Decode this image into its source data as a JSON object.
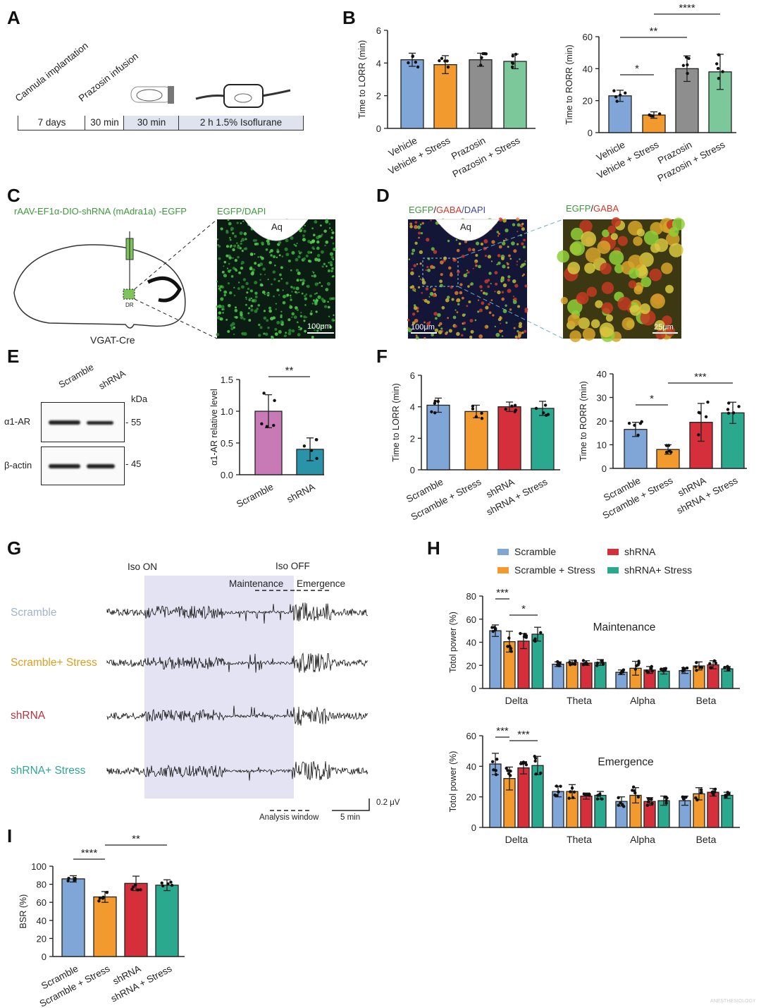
{
  "panel_labels": [
    "A",
    "B",
    "C",
    "D",
    "E",
    "F",
    "G",
    "H",
    "I"
  ],
  "panel_A": {
    "event_labels": [
      "Cannula implantation",
      "Prazosin infusion"
    ],
    "timeline": [
      "7 days",
      "30 min",
      "30 min",
      "2 h 1.5% Isoflurane"
    ]
  },
  "panel_C": {
    "vector": "rAAV-EF1α-DIO-shRNA (mAdra1a) -EGFP",
    "stain": "EGFP/DAPI",
    "region": "Aq",
    "scale": "100μm",
    "injection_site": "DR",
    "mouse_line": "VGAT-Cre"
  },
  "panel_D": {
    "stain_left": [
      "EGFP",
      "/",
      "GABA",
      "/DAPI"
    ],
    "stain_right": [
      "EGFP",
      "/",
      "GABA"
    ],
    "region": "Aq",
    "scale_left": "100μm",
    "scale_right": "25μm"
  },
  "panel_E_blot": {
    "lanes": [
      "Scramble",
      "shRNA"
    ],
    "unit": "kDa",
    "rows": [
      {
        "protein": "α1-AR",
        "kda": "55"
      },
      {
        "protein": "β-actin",
        "kda": "45"
      }
    ]
  },
  "panel_G": {
    "markers": [
      "Iso ON",
      "Iso OFF"
    ],
    "windows": [
      "Maintenance",
      "Emergence"
    ],
    "traces": [
      "Scramble",
      "Scramble+ Stress",
      "shRNA",
      "shRNA+ Stress"
    ],
    "trace_colors": [
      "#9fb4cc",
      "#d9a020",
      "#b5333a",
      "#2fa596"
    ],
    "analysis_window": "Analysis window",
    "time_scale": "5 min",
    "amp_scale": "0.2 μV"
  },
  "watermark": "ANESTHESIOLOGY",
  "chart_data": [
    {
      "id": "B_lorr",
      "type": "bar",
      "title": "",
      "xlabel": "",
      "ylabel": "Time to LORR (min)",
      "categories": [
        "Vehicle",
        "Vehicle + Stress",
        "Prazosin",
        "Prazosin + Stress"
      ],
      "values": [
        4.2,
        3.9,
        4.2,
        4.1
      ],
      "errors": [
        0.4,
        0.55,
        0.4,
        0.45
      ],
      "colors": [
        "#7fa6d6",
        "#f39a2e",
        "#8e8e8e",
        "#7cc89a"
      ],
      "ylim": [
        0,
        6
      ],
      "yticks": [
        "0",
        "2",
        "4",
        "6"
      ],
      "significance": []
    },
    {
      "id": "B_rorr",
      "type": "bar",
      "title": "",
      "xlabel": "",
      "ylabel": "Time to RORR (min)",
      "categories": [
        "Vehicle",
        "Vehicle + Stress",
        "Prazosin",
        "Prazosin + Stress"
      ],
      "values": [
        23,
        11,
        40,
        38
      ],
      "errors": [
        3.5,
        2,
        8,
        11
      ],
      "colors": [
        "#7fa6d6",
        "#f39a2e",
        "#8e8e8e",
        "#7cc89a"
      ],
      "ylim": [
        0,
        60
      ],
      "yticks": [
        "0",
        "20",
        "40",
        "60"
      ],
      "significance": [
        {
          "pair": [
            0,
            1
          ],
          "label": "*"
        },
        {
          "pair": [
            0,
            2
          ],
          "label": "**"
        },
        {
          "pair": [
            1,
            3
          ],
          "label": "****"
        }
      ]
    },
    {
      "id": "E_wb",
      "type": "bar",
      "title": "",
      "xlabel": "",
      "ylabel": "α1-AR relative level",
      "categories": [
        "Scramble",
        "shRNA"
      ],
      "values": [
        1.0,
        0.4
      ],
      "errors": [
        0.26,
        0.18
      ],
      "colors": [
        "#c87ab6",
        "#2a93a8"
      ],
      "ylim": [
        0,
        1.5
      ],
      "yticks": [
        "0.0",
        "0.5",
        "1.0",
        "1.5"
      ],
      "significance": [
        {
          "pair": [
            0,
            1
          ],
          "label": "**"
        }
      ]
    },
    {
      "id": "F_lorr",
      "type": "bar",
      "title": "",
      "xlabel": "",
      "ylabel": "Time to LORR (min)",
      "categories": [
        "Scramble",
        "Scramble + Stress",
        "shRNA",
        "shRNA + Stress"
      ],
      "values": [
        4.1,
        3.7,
        4.0,
        3.9
      ],
      "errors": [
        0.45,
        0.4,
        0.3,
        0.45
      ],
      "colors": [
        "#7fa6d6",
        "#f39a2e",
        "#d42f3a",
        "#2aa98f"
      ],
      "ylim": [
        0,
        6
      ],
      "yticks": [
        "0",
        "2",
        "4",
        "6"
      ],
      "significance": []
    },
    {
      "id": "F_rorr",
      "type": "bar",
      "title": "",
      "xlabel": "",
      "ylabel": "Time to RORR (min)",
      "categories": [
        "Scramble",
        "Scramble + Stress",
        "shRNA",
        "shRNA + Stress"
      ],
      "values": [
        16.5,
        8,
        19.5,
        23.5
      ],
      "errors": [
        3,
        2,
        8,
        4.5
      ],
      "colors": [
        "#7fa6d6",
        "#f39a2e",
        "#d42f3a",
        "#2aa98f"
      ],
      "ylim": [
        0,
        40
      ],
      "yticks": [
        "0",
        "10",
        "20",
        "30",
        "40"
      ],
      "significance": [
        {
          "pair": [
            0,
            1
          ],
          "label": "*"
        },
        {
          "pair": [
            1,
            3
          ],
          "label": "***"
        }
      ]
    },
    {
      "id": "H_maintenance",
      "type": "bar",
      "title": "Maintenance",
      "xlabel": "",
      "ylabel": "Totol power (%)",
      "categories": [
        "Delta",
        "Theta",
        "Alpha",
        "Beta"
      ],
      "series": [
        {
          "name": "Scramble",
          "color": "#7fa6d6",
          "values": [
            50,
            21,
            14,
            15.5
          ],
          "errors": [
            5,
            2,
            2,
            2.5
          ]
        },
        {
          "name": "Scramble + Stress",
          "color": "#f39a2e",
          "values": [
            40.5,
            22.5,
            17.5,
            19.5
          ],
          "errors": [
            9,
            2,
            6,
            3.5
          ]
        },
        {
          "name": "shRNA",
          "color": "#d42f3a",
          "values": [
            41,
            22,
            16,
            20.5
          ],
          "errors": [
            6.5,
            2,
            3,
            3.5
          ]
        },
        {
          "name": "shRNA+ Stress",
          "color": "#2aa98f",
          "values": [
            47,
            22.5,
            15,
            17
          ],
          "errors": [
            6,
            2.5,
            2.5,
            2
          ]
        }
      ],
      "ylim": [
        0,
        80
      ],
      "yticks": [
        "0",
        "20",
        "40",
        "60",
        "80"
      ],
      "legend": "top",
      "significance": [
        {
          "group": 0,
          "pair": [
            0,
            1
          ],
          "label": "***"
        },
        {
          "group": 0,
          "pair": [
            1,
            3
          ],
          "label": "*"
        }
      ]
    },
    {
      "id": "H_emergence",
      "type": "bar",
      "title": "Emergence",
      "xlabel": "",
      "ylabel": "Totol power (%)",
      "categories": [
        "Delta",
        "Theta",
        "Alpha",
        "Beta"
      ],
      "series": [
        {
          "name": "Scramble",
          "color": "#7fa6d6",
          "values": [
            41.5,
            23.5,
            17,
            17.5
          ],
          "errors": [
            7,
            3.5,
            3,
            3
          ]
        },
        {
          "name": "Scramble + Stress",
          "color": "#f39a2e",
          "values": [
            32,
            23.5,
            21,
            22
          ],
          "errors": [
            7.5,
            4.5,
            5,
            4
          ]
        },
        {
          "name": "shRNA",
          "color": "#d42f3a",
          "values": [
            39,
            20.5,
            17,
            23
          ],
          "errors": [
            4,
            2,
            2.5,
            2.5
          ]
        },
        {
          "name": "shRNA+ Stress",
          "color": "#2aa98f",
          "values": [
            40.5,
            21,
            17.5,
            21
          ],
          "errors": [
            6,
            2.5,
            3,
            2
          ]
        }
      ],
      "ylim": [
        0,
        60
      ],
      "yticks": [
        "0",
        "20",
        "40",
        "60"
      ],
      "significance": [
        {
          "group": 0,
          "pair": [
            0,
            1
          ],
          "label": "***"
        },
        {
          "group": 0,
          "pair": [
            1,
            3
          ],
          "label": "***"
        }
      ]
    },
    {
      "id": "I_bsr",
      "type": "bar",
      "title": "",
      "xlabel": "",
      "ylabel": "BSR (%)",
      "categories": [
        "Scramble",
        "Scramble + Stress",
        "shRNA",
        "shRNA + Stress"
      ],
      "values": [
        86,
        66,
        81,
        79
      ],
      "errors": [
        3.5,
        6,
        8,
        6
      ],
      "colors": [
        "#7fa6d6",
        "#f39a2e",
        "#d42f3a",
        "#2aa98f"
      ],
      "ylim": [
        0,
        100
      ],
      "yticks": [
        "0",
        "20",
        "40",
        "60",
        "80",
        "100"
      ],
      "significance": [
        {
          "pair": [
            0,
            1
          ],
          "label": "****"
        },
        {
          "pair": [
            1,
            3
          ],
          "label": "**"
        }
      ]
    }
  ]
}
